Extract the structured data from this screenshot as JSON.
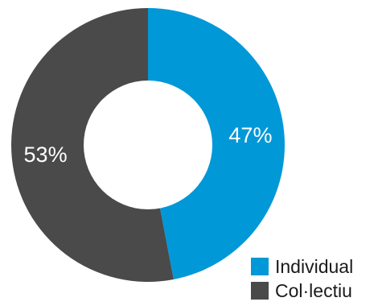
{
  "chart_data": {
    "type": "pie",
    "donut": true,
    "title": "",
    "slices": [
      {
        "label": "Individual",
        "value": 47,
        "display": "47%",
        "color": "#0198d8"
      },
      {
        "label": "Col·lectiu",
        "value": 53,
        "display": "53%",
        "color": "#4a4a4a"
      }
    ],
    "start_angle_deg": 0,
    "direction": "clockwise",
    "legend_position": "bottom-right"
  }
}
